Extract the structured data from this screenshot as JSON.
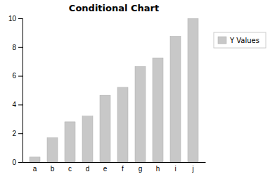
{
  "chart_data": {
    "type": "bar",
    "title": "Conditional Chart",
    "categories": [
      "a",
      "b",
      "c",
      "d",
      "e",
      "f",
      "g",
      "h",
      "i",
      "j"
    ],
    "series": [
      {
        "name": "Y Values",
        "color": "#c8c8c8",
        "values": [
          0.35,
          1.7,
          2.8,
          3.2,
          4.65,
          5.2,
          6.65,
          7.25,
          8.75,
          10.0
        ]
      }
    ],
    "ylim": [
      0,
      10
    ],
    "yticks": [
      0,
      2,
      4,
      6,
      8,
      10
    ],
    "grid": false,
    "legend": "right"
  }
}
